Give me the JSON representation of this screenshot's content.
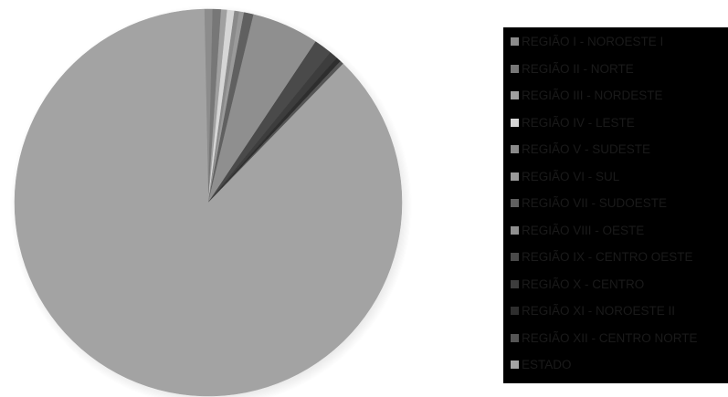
{
  "chart_data": {
    "type": "pie",
    "title": "",
    "slices": [
      {
        "label": "REGIÃO I - NOROESTE I",
        "value": 0.7,
        "color": "#8c8c8c"
      },
      {
        "label": "REGIÃO II - NORTE",
        "value": 0.7,
        "color": "#777777"
      },
      {
        "label": "REGIÃO III - NORDESTE",
        "value": 0.5,
        "color": "#a0a0a0"
      },
      {
        "label": "REGIÃO IV - LESTE",
        "value": 0.6,
        "color": "#d6d6d6"
      },
      {
        "label": "REGIÃO V - SUDESTE",
        "value": 0.4,
        "color": "#8a8a8a"
      },
      {
        "label": "REGIÃO VI - SUL",
        "value": 0.4,
        "color": "#9a9a9a"
      },
      {
        "label": "REGIÃO VII - SUDOESTE",
        "value": 0.8,
        "color": "#606060"
      },
      {
        "label": "REGIÃO VIII - OESTE",
        "value": 5.6,
        "color": "#8f8f8f"
      },
      {
        "label": "REGIÃO IX - CENTRO OESTE",
        "value": 1.5,
        "color": "#4a4a4a"
      },
      {
        "label": "REGIÃO X - CENTRO",
        "value": 0.7,
        "color": "#3d3d3d"
      },
      {
        "label": "REGIÃO XI - NOROESTE II",
        "value": 0.4,
        "color": "#2e2e2e"
      },
      {
        "label": "REGIÃO XII - CENTRO NORTE",
        "value": 0.3,
        "color": "#555555"
      },
      {
        "label": "ESTADO",
        "value": 87.4,
        "color": "#a3a3a3"
      }
    ],
    "legend_position": "right"
  }
}
